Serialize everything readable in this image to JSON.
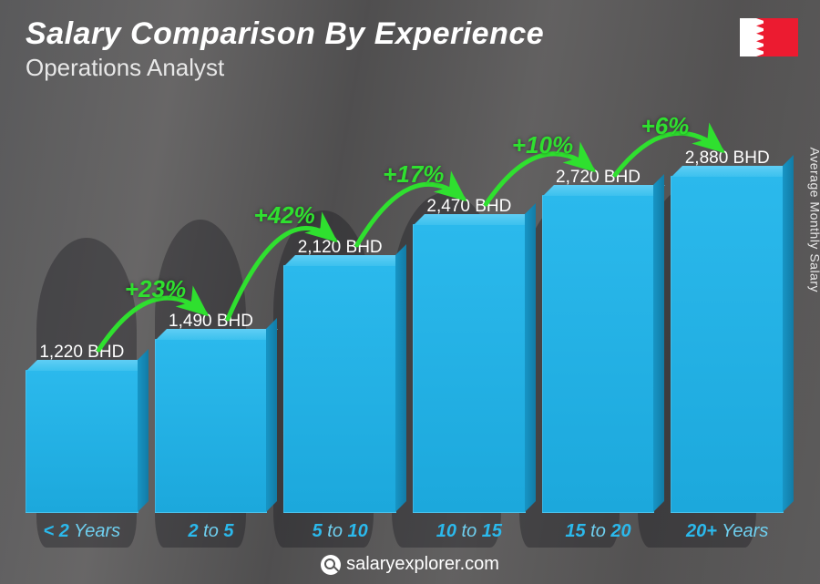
{
  "header": {
    "title": "Salary Comparison By Experience",
    "subtitle": "Operations Analyst",
    "flag_country": "Bahrain",
    "flag_colors": {
      "white": "#ffffff",
      "red": "#ec1b30"
    }
  },
  "yaxis_label": "Average Monthly Salary",
  "footer": "salaryexplorer.com",
  "chart": {
    "type": "bar",
    "bar_color": "#2bb9ec",
    "bar_top_color": "#5fcef5",
    "bar_side_color": "#127ba5",
    "value_text_color": "#ffffff",
    "xlabel_color": "#2bb9ec",
    "pct_color": "#2fe02f",
    "arc_stroke": "#2fe02f",
    "value_fontsize": 19,
    "xlabel_fontsize": 20,
    "pct_fontsize": 26,
    "currency_suffix": " BHD",
    "max_value": 2880,
    "bars": [
      {
        "label_pre": "< 2",
        "label_post": " Years",
        "value": 1220,
        "value_label": "1,220 BHD"
      },
      {
        "label_pre": "2",
        "label_mid": " to ",
        "label_post": "5",
        "value": 1490,
        "value_label": "1,490 BHD"
      },
      {
        "label_pre": "5",
        "label_mid": " to ",
        "label_post": "10",
        "value": 2120,
        "value_label": "2,120 BHD"
      },
      {
        "label_pre": "10",
        "label_mid": " to ",
        "label_post": "15",
        "value": 2470,
        "value_label": "2,470 BHD"
      },
      {
        "label_pre": "15",
        "label_mid": " to ",
        "label_post": "20",
        "value": 2720,
        "value_label": "2,720 BHD"
      },
      {
        "label_pre": "20+",
        "label_post": " Years",
        "value": 2880,
        "value_label": "2,880 BHD"
      }
    ],
    "increases": [
      {
        "from": 0,
        "to": 1,
        "pct": "+23%"
      },
      {
        "from": 1,
        "to": 2,
        "pct": "+42%"
      },
      {
        "from": 2,
        "to": 3,
        "pct": "+17%"
      },
      {
        "from": 3,
        "to": 4,
        "pct": "+10%"
      },
      {
        "from": 4,
        "to": 5,
        "pct": "+6%"
      }
    ]
  }
}
